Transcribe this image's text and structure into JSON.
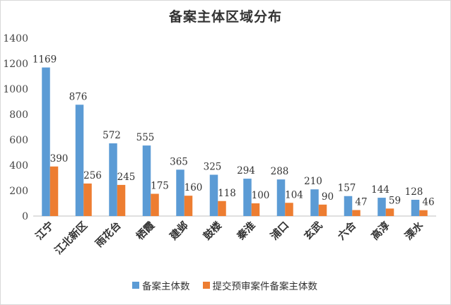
{
  "chart_data": {
    "type": "bar",
    "title": "备案主体区域分布",
    "xlabel": "",
    "ylabel": "",
    "categories": [
      "江宁",
      "江北新区",
      "雨花台",
      "栖霞",
      "建邺",
      "鼓楼",
      "秦淮",
      "浦口",
      "玄武",
      "六合",
      "高淳",
      "溧水"
    ],
    "series": [
      {
        "name": "备案主体数",
        "color": "#5b9bd5",
        "values": [
          1169,
          876,
          572,
          555,
          365,
          325,
          294,
          288,
          210,
          157,
          144,
          128
        ]
      },
      {
        "name": "提交预审案件备案主体数",
        "color": "#ed7d31",
        "values": [
          390,
          256,
          245,
          175,
          160,
          118,
          100,
          104,
          90,
          47,
          59,
          46
        ]
      }
    ],
    "ylim": [
      0,
      1400
    ],
    "yticks": [
      0,
      200,
      400,
      600,
      800,
      1000,
      1200,
      1400
    ],
    "grid": false,
    "legend": "bottom"
  }
}
